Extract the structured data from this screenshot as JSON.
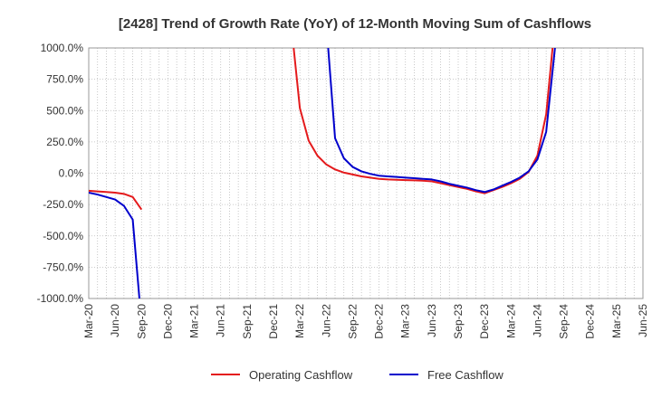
{
  "chart_data": {
    "type": "line",
    "title": "[2428]  Trend of Growth Rate (YoY) of 12-Month Moving Sum of Cashflows",
    "xlabel": "",
    "ylabel": "",
    "ylim": [
      -1000,
      1000
    ],
    "grid": true,
    "legend_position": "bottom",
    "y_ticks": [
      "1000.0%",
      "750.0%",
      "500.0%",
      "250.0%",
      "0.0%",
      "-250.0%",
      "-500.0%",
      "-750.0%",
      "-1000.0%"
    ],
    "x_ticks": [
      "Mar-20",
      "Jun-20",
      "Sep-20",
      "Dec-20",
      "Mar-21",
      "Jun-21",
      "Sep-21",
      "Dec-21",
      "Mar-22",
      "Jun-22",
      "Sep-22",
      "Dec-22",
      "Mar-23",
      "Jun-23",
      "Sep-23",
      "Dec-23",
      "Mar-24",
      "Jun-24",
      "Sep-24",
      "Dec-24",
      "Mar-25",
      "Jun-25"
    ],
    "x": [
      "Mar-20",
      "Apr-20",
      "May-20",
      "Jun-20",
      "Jul-20",
      "Aug-20",
      "Sep-20",
      "Oct-20",
      "Nov-20",
      "Dec-20",
      "Jan-21",
      "Feb-21",
      "Mar-21",
      "Apr-21",
      "May-21",
      "Jun-21",
      "Jul-21",
      "Aug-21",
      "Sep-21",
      "Oct-21",
      "Nov-21",
      "Dec-21",
      "Jan-22",
      "Feb-22",
      "Mar-22",
      "Apr-22",
      "May-22",
      "Jun-22",
      "Jul-22",
      "Aug-22",
      "Sep-22",
      "Oct-22",
      "Nov-22",
      "Dec-22",
      "Jan-23",
      "Feb-23",
      "Mar-23",
      "Apr-23",
      "May-23",
      "Jun-23",
      "Jul-23",
      "Aug-23",
      "Sep-23",
      "Oct-23",
      "Nov-23",
      "Dec-23",
      "Jan-24",
      "Feb-24",
      "Mar-24",
      "Apr-24",
      "May-24",
      "Jun-24",
      "Jul-24",
      "Aug-24",
      "Sep-24",
      "Oct-24",
      "Nov-24",
      "Dec-24",
      "Jan-25",
      "Feb-25",
      "Mar-25",
      "Apr-25",
      "May-25",
      "Jun-25"
    ],
    "series": [
      {
        "name": "Operating Cashflow",
        "color": "#e41a1c",
        "values": [
          -140,
          -145,
          -150,
          -155,
          -165,
          -190,
          -290,
          null,
          null,
          null,
          null,
          null,
          null,
          null,
          null,
          null,
          null,
          null,
          null,
          null,
          null,
          null,
          null,
          1200,
          520,
          260,
          140,
          70,
          30,
          5,
          -10,
          -25,
          -35,
          -45,
          -50,
          -52,
          -55,
          -57,
          -60,
          -65,
          -80,
          -95,
          -110,
          -125,
          -145,
          -160,
          -135,
          -110,
          -80,
          -45,
          10,
          140,
          470,
          1200,
          null,
          null,
          null,
          null,
          null,
          null,
          null,
          null,
          null,
          null
        ]
      },
      {
        "name": "Free Cashflow",
        "color": "#0000cc",
        "values": [
          -155,
          -170,
          -190,
          -210,
          -260,
          -370,
          -1200,
          null,
          null,
          null,
          null,
          null,
          null,
          null,
          null,
          null,
          null,
          null,
          null,
          null,
          null,
          null,
          null,
          null,
          null,
          null,
          null,
          1200,
          280,
          120,
          50,
          15,
          -5,
          -20,
          -25,
          -30,
          -35,
          -40,
          -45,
          -50,
          -65,
          -85,
          -100,
          -115,
          -135,
          -150,
          -130,
          -100,
          -70,
          -35,
          15,
          110,
          330,
          1000,
          null,
          null,
          null,
          null,
          null,
          null,
          null,
          null,
          null,
          null
        ]
      }
    ]
  }
}
